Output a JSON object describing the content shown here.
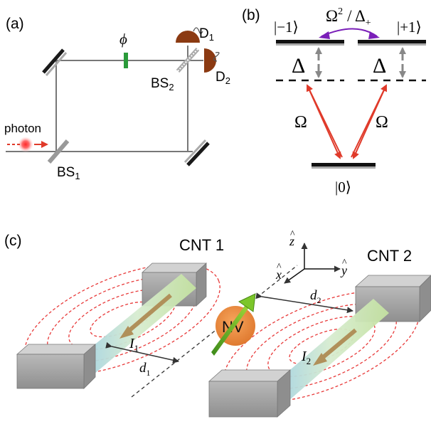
{
  "panel_a": {
    "label": "(a)",
    "phase": "ϕ",
    "detector_1": "D",
    "detector_1_sub": "1",
    "detector_2": "D",
    "detector_2_sub": "2",
    "beamsplitter_2": "BS",
    "beamsplitter_2_sub": "2",
    "beamsplitter_1": "BS",
    "beamsplitter_1_sub": "1",
    "photon": "photon"
  },
  "panel_b": {
    "label": "(b)",
    "state_minus": "|−1⟩",
    "state_plus": "|+1⟩",
    "state_zero": "|0⟩",
    "coupling_omega": "Ω",
    "coupling_sup": "2",
    "coupling_slash": "/ Δ",
    "coupling_sub": "+",
    "detuning_left": "Δ",
    "detuning_right": "Δ",
    "rabi_left": "Ω",
    "rabi_right": "Ω"
  },
  "panel_c": {
    "label": "(c)",
    "cnt1": "CNT 1",
    "cnt2": "CNT 2",
    "nv": "NV",
    "axis_z": "z",
    "axis_y": "y",
    "axis_x": "x",
    "hat": "^",
    "current_1": "I",
    "current_1_sub": "1",
    "current_2": "I",
    "current_2_sub": "2",
    "distance_1": "d",
    "distance_1_sub": "1",
    "distance_2": "d",
    "distance_2_sub": "2"
  },
  "colors": {
    "arrow_red": "#e03a2a",
    "phase_green": "#2a9a3a",
    "detector_brown": "#8b3a12",
    "coupling_purple": "#7a1fb8",
    "nv_orange": "#e8813a",
    "field_dash": "#e83a3a"
  }
}
